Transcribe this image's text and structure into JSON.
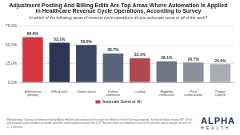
{
  "chart_data": {
    "type": "bar",
    "title": "Adjustment Posting And Billing Edits Are Top Areas Where Automation Is Applied in Healthcare Revenue Cycle Operations, According to Survey",
    "subtitle": "In which of the following areas of revenue cycle operations do you automate some or all of the work?",
    "categories": [
      "Adjustment posting",
      "Billing edits",
      "Claims status",
      "Patient estimates",
      "Coding",
      "Eligibility verification",
      "Prior authorization",
      "Charge capture"
    ],
    "series": [
      {
        "name": "Automate Some or All",
        "values": [
          60.6,
          53.1,
          50.0,
          38.7,
          32.1,
          28.1,
          26.7,
          24.4
        ],
        "value_labels": [
          "60.6%",
          "53.1%",
          "50.0%",
          "38.7%",
          "32.1%",
          "28.1%",
          "26.7%",
          "24.4%"
        ],
        "colors": [
          "#d4373f",
          "#2c3553",
          "#3b4763",
          "#5a6478",
          "#b2484f",
          "#6e7585",
          "#8c909c",
          "#a9acb4"
        ]
      }
    ],
    "ylim": [
      0,
      75
    ],
    "yticks": [
      {
        "value": 0,
        "label": "0.0%"
      },
      {
        "value": 25,
        "label": "25.0%"
      },
      {
        "value": 50,
        "label": "50.0%"
      },
      {
        "value": 75,
        "label": "75.0%"
      }
    ],
    "grid": true,
    "legend": "bottom",
    "data_labels": true
  },
  "footer": {
    "note": "Methodology: Survey commissioned by Alpha Health and conducted through the Wilshire Panel Survey program. Survey fielded among 387 CFOs and revenue cycle leaders at health systems and hospitals across the U.S. Results have a confidence level of 95 percent and a margin of error of +/- 5 percent.",
    "logo_name": "ALPHA",
    "logo_sub": "HEALTH"
  }
}
